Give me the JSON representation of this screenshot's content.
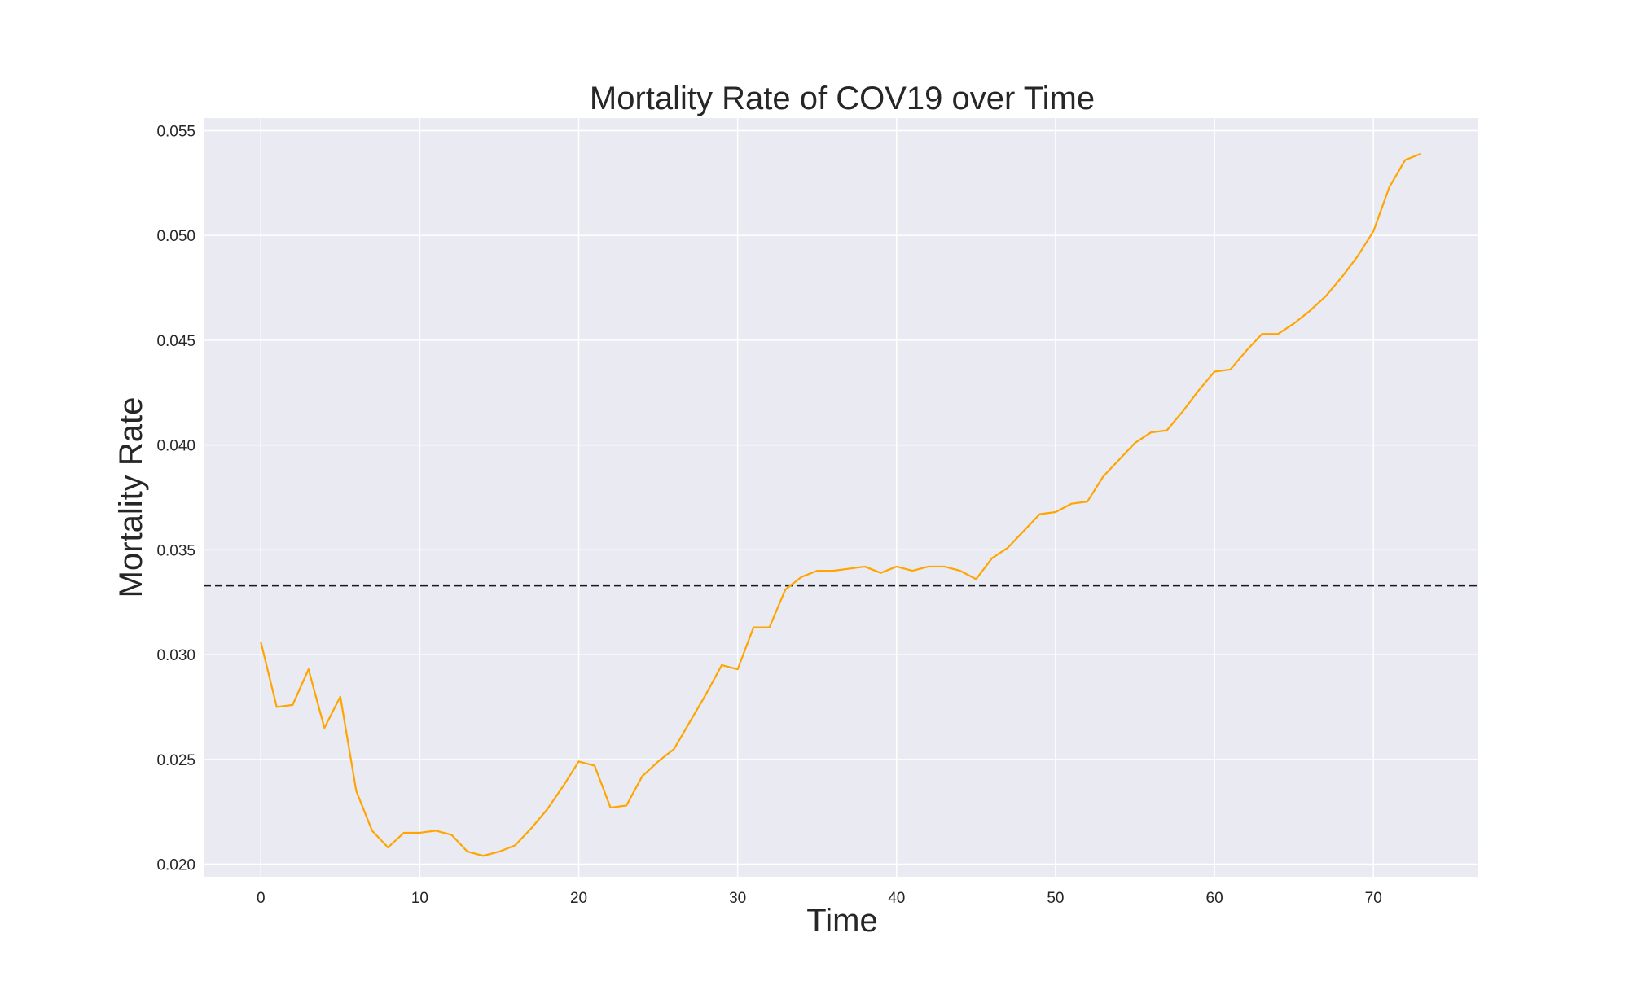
{
  "chart_data": {
    "type": "line",
    "title": "Mortality Rate of COV19 over Time",
    "xlabel": "Time",
    "ylabel": "Mortality Rate",
    "xlim": [
      -3.6,
      76.6
    ],
    "ylim": [
      0.0194,
      0.0556
    ],
    "x_ticks": [
      0,
      10,
      20,
      30,
      40,
      50,
      60,
      70
    ],
    "y_ticks": [
      0.02,
      0.025,
      0.03,
      0.035,
      0.04,
      0.045,
      0.05,
      0.055
    ],
    "x_tick_labels": [
      "0",
      "10",
      "20",
      "30",
      "40",
      "50",
      "60",
      "70"
    ],
    "y_tick_labels": [
      "0.020",
      "0.025",
      "0.030",
      "0.035",
      "0.040",
      "0.045",
      "0.050",
      "0.055"
    ],
    "grid": true,
    "background_color": "#eaeaf2",
    "grid_color": "#ffffff",
    "series": [
      {
        "color": "#ffa500",
        "x": [
          0,
          1,
          2,
          3,
          4,
          5,
          6,
          7,
          8,
          9,
          10,
          11,
          12,
          13,
          14,
          15,
          16,
          17,
          18,
          19,
          20,
          21,
          22,
          23,
          24,
          25,
          26,
          27,
          28,
          29,
          30,
          31,
          32,
          33,
          34,
          35,
          36,
          37,
          38,
          39,
          40,
          41,
          42,
          43,
          44,
          45,
          46,
          47,
          48,
          49,
          50,
          51,
          52,
          53,
          54,
          55,
          56,
          57,
          58,
          59,
          60,
          61,
          62,
          63,
          64,
          65,
          66,
          67,
          68,
          69,
          70,
          71,
          72,
          73
        ],
        "y": [
          0.0306,
          0.0275,
          0.0276,
          0.0293,
          0.0265,
          0.028,
          0.0235,
          0.0216,
          0.0208,
          0.0215,
          0.0215,
          0.0216,
          0.0214,
          0.0206,
          0.0204,
          0.0206,
          0.0209,
          0.0217,
          0.0226,
          0.0237,
          0.0249,
          0.0247,
          0.0227,
          0.0228,
          0.0242,
          0.0249,
          0.0255,
          0.0268,
          0.0281,
          0.0295,
          0.0293,
          0.0313,
          0.0313,
          0.0331,
          0.0337,
          0.034,
          0.034,
          0.0341,
          0.0342,
          0.0339,
          0.0342,
          0.034,
          0.0342,
          0.0342,
          0.034,
          0.0336,
          0.0346,
          0.0351,
          0.0359,
          0.0367,
          0.0368,
          0.0372,
          0.0373,
          0.0385,
          0.0393,
          0.0401,
          0.0406,
          0.0407,
          0.0416,
          0.0426,
          0.0435,
          0.0436,
          0.0445,
          0.0453,
          0.0453,
          0.0458,
          0.0464,
          0.0471,
          0.048,
          0.049,
          0.0502,
          0.0523,
          0.0536,
          0.0539
        ]
      }
    ],
    "reference_line": {
      "y": 0.0333,
      "style": "dashed",
      "color": "#1a1a1a"
    }
  }
}
